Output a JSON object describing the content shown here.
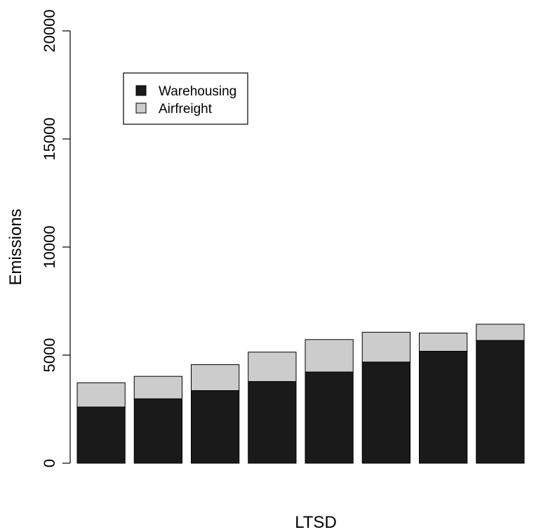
{
  "chart_data": {
    "type": "bar",
    "stacked": true,
    "title": "",
    "xlabel": "LTSD",
    "ylabel": "Emissions",
    "ylim": [
      0,
      20000
    ],
    "yticks": [
      0,
      5000,
      10000,
      15000,
      20000
    ],
    "categories": [
      "",
      "",
      "",
      "",
      "",
      "",
      "",
      ""
    ],
    "series": [
      {
        "name": "Warehousing",
        "color": "#1a1a1a",
        "values": [
          2600,
          2980,
          3360,
          3780,
          4220,
          4680,
          5180,
          5680
        ]
      },
      {
        "name": "Airfreight",
        "color": "#cccccc",
        "values": [
          1120,
          1040,
          1200,
          1360,
          1500,
          1380,
          840,
          750
        ]
      }
    ],
    "legend_position": "top-left",
    "grid": false,
    "axes_box": false
  }
}
